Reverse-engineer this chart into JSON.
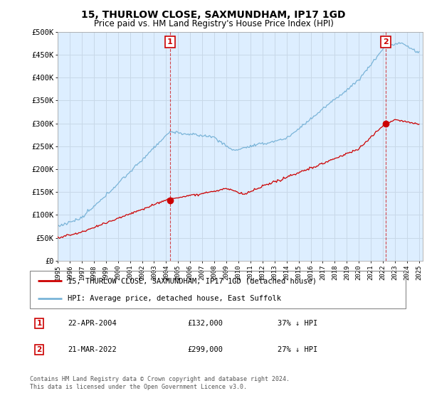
{
  "title": "15, THURLOW CLOSE, SAXMUNDHAM, IP17 1GD",
  "subtitle": "Price paid vs. HM Land Registry's House Price Index (HPI)",
  "ylabel_ticks": [
    "£0",
    "£50K",
    "£100K",
    "£150K",
    "£200K",
    "£250K",
    "£300K",
    "£350K",
    "£400K",
    "£450K",
    "£500K"
  ],
  "ylim": [
    0,
    500000
  ],
  "xlim_start": 1995.0,
  "xlim_end": 2025.3,
  "xticks": [
    1995,
    1996,
    1997,
    1998,
    1999,
    2000,
    2001,
    2002,
    2003,
    2004,
    2005,
    2006,
    2007,
    2008,
    2009,
    2010,
    2011,
    2012,
    2013,
    2014,
    2015,
    2016,
    2017,
    2018,
    2019,
    2020,
    2021,
    2022,
    2023,
    2024,
    2025
  ],
  "sale1_x": 2004.31,
  "sale1_y": 132000,
  "sale1_label": "1",
  "sale2_x": 2022.22,
  "sale2_y": 299000,
  "sale2_label": "2",
  "hpi_color": "#7ab4d8",
  "sale_color": "#cc0000",
  "grid_color": "#c8d8e8",
  "bg_color": "#ddeeff",
  "background_color": "#ffffff",
  "legend_label1": "15, THURLOW CLOSE, SAXMUNDHAM, IP17 1GD (detached house)",
  "legend_label2": "HPI: Average price, detached house, East Suffolk",
  "table_row1": [
    "1",
    "22-APR-2004",
    "£132,000",
    "37% ↓ HPI"
  ],
  "table_row2": [
    "2",
    "21-MAR-2022",
    "£299,000",
    "27% ↓ HPI"
  ],
  "footnote": "Contains HM Land Registry data © Crown copyright and database right 2024.\nThis data is licensed under the Open Government Licence v3.0."
}
